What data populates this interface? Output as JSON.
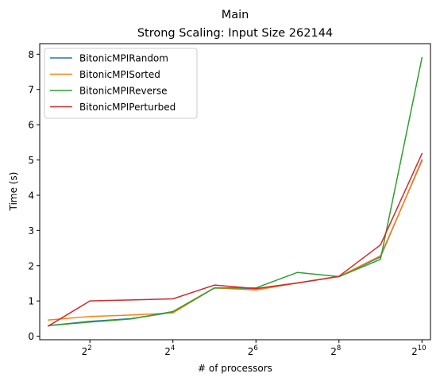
{
  "chart_data": {
    "type": "line",
    "title": "Main",
    "subtitle": "Strong Scaling: Input Size 262144",
    "xlabel": "# of processors",
    "ylabel": "Time (s)",
    "x_scale": "log2",
    "x": [
      2,
      4,
      8,
      16,
      32,
      64,
      128,
      256,
      512,
      1024
    ],
    "xlim": [
      1.73,
      1180
    ],
    "ylim": [
      -0.1,
      8.3
    ],
    "x_ticks": [
      {
        "value": 4,
        "base": "2",
        "exp": "2"
      },
      {
        "value": 16,
        "base": "2",
        "exp": "4"
      },
      {
        "value": 64,
        "base": "2",
        "exp": "6"
      },
      {
        "value": 256,
        "base": "2",
        "exp": "8"
      },
      {
        "value": 1024,
        "base": "2",
        "exp": "10"
      }
    ],
    "y_ticks": [
      "0",
      "1",
      "2",
      "3",
      "4",
      "5",
      "6",
      "7",
      "8"
    ],
    "grid": false,
    "legend_position": "top-left",
    "series": [
      {
        "name": "BitonicMPIRandom",
        "color": "#1f77b4",
        "values": [
          0.3,
          0.42,
          0.5,
          0.68,
          1.37,
          1.35,
          1.51,
          1.69,
          2.25,
          5.0
        ]
      },
      {
        "name": "BitonicMPISorted",
        "color": "#ff7f0e",
        "values": [
          0.46,
          0.56,
          0.6,
          0.66,
          1.37,
          1.31,
          1.51,
          1.69,
          2.28,
          4.97
        ]
      },
      {
        "name": "BitonicMPIReverse",
        "color": "#2ca02c",
        "values": [
          0.3,
          0.4,
          0.49,
          0.7,
          1.37,
          1.37,
          1.81,
          1.69,
          2.18,
          7.9
        ]
      },
      {
        "name": "BitonicMPIPerturbed",
        "color": "#d62728",
        "values": [
          0.29,
          1.0,
          1.03,
          1.06,
          1.45,
          1.35,
          1.51,
          1.7,
          2.59,
          5.18
        ]
      }
    ]
  }
}
